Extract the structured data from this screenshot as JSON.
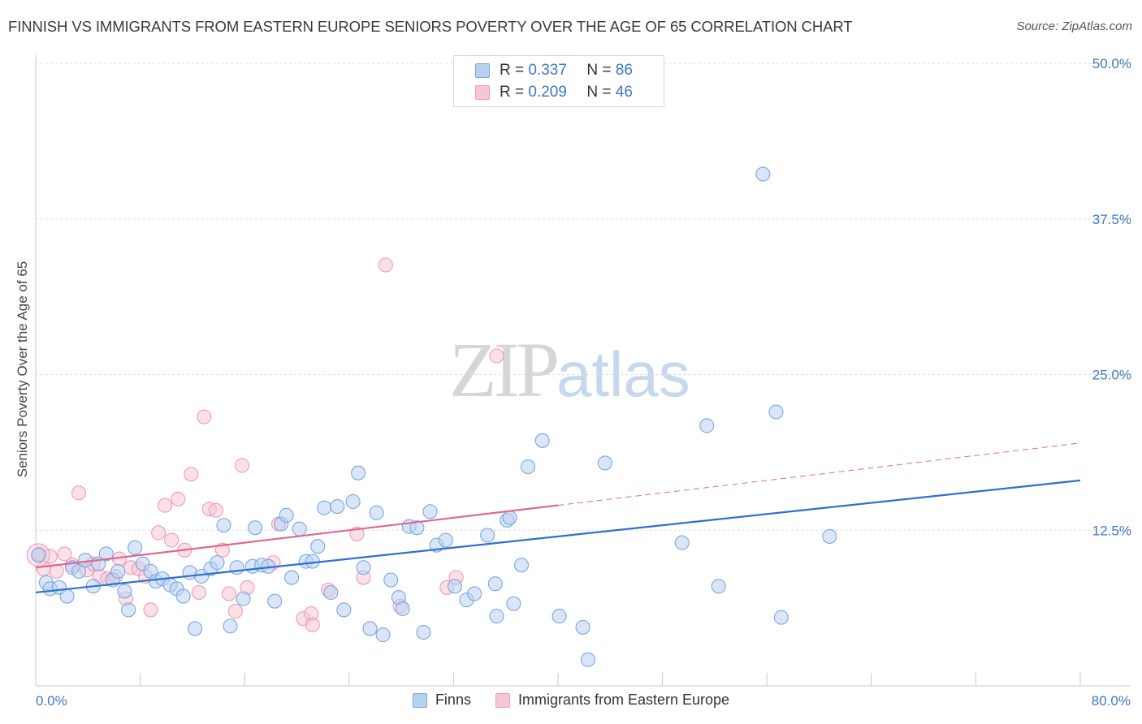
{
  "title": "FINNISH VS IMMIGRANTS FROM EASTERN EUROPE SENIORS POVERTY OVER THE AGE OF 65 CORRELATION CHART",
  "source": "Source: ZipAtlas.com",
  "watermark": {
    "zip": "ZIP",
    "atlas": "atlas"
  },
  "colors": {
    "finns": "#7aa7e0",
    "finns_fill": "#b9d1f1",
    "finns_line": "#2f6fcf",
    "immigrants": "#ef9ab6",
    "immigrants_fill": "#f7c6d5",
    "immigrants_line": "#e0678f",
    "tick": "#3f78c8",
    "grid": "#dddddd"
  },
  "legend": {
    "rows": [
      {
        "r_label": "R =",
        "r_value": "0.337",
        "n_label": "N =",
        "n_value": "86"
      },
      {
        "r_label": "R =",
        "r_value": "0.209",
        "n_label": "N =",
        "n_value": "46"
      }
    ]
  },
  "bottom_legend": {
    "finns": "Finns",
    "immigrants": "Immigrants from Eastern Europe"
  },
  "chart_data": {
    "type": "scatter",
    "title": "FINNISH VS IMMIGRANTS FROM EASTERN EUROPE SENIORS POVERTY OVER THE AGE OF 65 CORRELATION CHART",
    "xlabel": "",
    "ylabel": "Seniors Poverty Over the Age of 65",
    "xlim": [
      0,
      80
    ],
    "ylim": [
      0,
      50
    ],
    "x_tick_labels": [
      "0.0%",
      "80.0%"
    ],
    "y_ticks": [
      12.5,
      25.0,
      37.5,
      50.0
    ],
    "y_tick_labels": [
      "12.5%",
      "25.0%",
      "37.5%",
      "50.0%"
    ],
    "grid": true,
    "legend_placement": "top-center",
    "series": [
      {
        "name": "Finns",
        "r": 0.337,
        "n": 86,
        "trend": {
          "x": [
            0,
            80
          ],
          "y": [
            7.5,
            16.5
          ],
          "dashed_from": null
        },
        "points": [
          [
            0.2,
            10.5
          ],
          [
            0.8,
            8.3
          ],
          [
            1.1,
            7.8
          ],
          [
            1.8,
            7.9
          ],
          [
            2.4,
            7.2
          ],
          [
            2.8,
            9.5
          ],
          [
            3.3,
            9.2
          ],
          [
            3.8,
            10.1
          ],
          [
            4.4,
            8.0
          ],
          [
            4.8,
            9.8
          ],
          [
            5.4,
            10.6
          ],
          [
            5.9,
            8.5
          ],
          [
            6.3,
            9.2
          ],
          [
            6.8,
            7.6
          ],
          [
            7.1,
            6.1
          ],
          [
            7.6,
            11.1
          ],
          [
            8.2,
            9.8
          ],
          [
            8.8,
            9.2
          ],
          [
            9.2,
            8.4
          ],
          [
            9.7,
            8.6
          ],
          [
            10.3,
            8.1
          ],
          [
            10.8,
            7.8
          ],
          [
            11.3,
            7.2
          ],
          [
            11.8,
            9.1
          ],
          [
            12.2,
            4.6
          ],
          [
            12.7,
            8.8
          ],
          [
            13.4,
            9.4
          ],
          [
            13.9,
            9.9
          ],
          [
            14.4,
            12.9
          ],
          [
            14.9,
            4.8
          ],
          [
            15.4,
            9.5
          ],
          [
            15.9,
            7.0
          ],
          [
            16.6,
            9.6
          ],
          [
            16.8,
            12.7
          ],
          [
            17.3,
            9.7
          ],
          [
            17.8,
            9.6
          ],
          [
            18.3,
            6.8
          ],
          [
            18.8,
            13.0
          ],
          [
            19.2,
            13.7
          ],
          [
            19.6,
            8.7
          ],
          [
            20.2,
            12.6
          ],
          [
            20.7,
            10.0
          ],
          [
            21.2,
            10.0
          ],
          [
            21.6,
            11.2
          ],
          [
            22.1,
            14.3
          ],
          [
            22.6,
            7.5
          ],
          [
            23.1,
            14.4
          ],
          [
            23.6,
            6.1
          ],
          [
            24.3,
            14.8
          ],
          [
            24.7,
            17.1
          ],
          [
            25.1,
            9.5
          ],
          [
            25.6,
            4.6
          ],
          [
            26.1,
            13.9
          ],
          [
            26.6,
            4.1
          ],
          [
            27.2,
            8.5
          ],
          [
            27.8,
            7.1
          ],
          [
            28.1,
            6.2
          ],
          [
            28.6,
            12.8
          ],
          [
            29.2,
            12.7
          ],
          [
            29.7,
            4.3
          ],
          [
            30.2,
            14.0
          ],
          [
            30.7,
            11.3
          ],
          [
            31.4,
            11.7
          ],
          [
            32.1,
            8.0
          ],
          [
            33.0,
            6.9
          ],
          [
            33.6,
            7.4
          ],
          [
            34.6,
            12.1
          ],
          [
            35.2,
            8.2
          ],
          [
            35.3,
            5.6
          ],
          [
            36.1,
            13.3
          ],
          [
            36.3,
            13.5
          ],
          [
            36.6,
            6.6
          ],
          [
            37.2,
            9.7
          ],
          [
            37.7,
            17.6
          ],
          [
            38.8,
            19.7
          ],
          [
            40.1,
            5.6
          ],
          [
            41.9,
            4.7
          ],
          [
            42.3,
            2.1
          ],
          [
            43.6,
            17.9
          ],
          [
            49.5,
            11.5
          ],
          [
            51.4,
            20.9
          ],
          [
            52.3,
            8.0
          ],
          [
            55.7,
            41.1
          ],
          [
            56.7,
            22.0
          ],
          [
            57.1,
            5.5
          ],
          [
            60.8,
            12.0
          ]
        ]
      },
      {
        "name": "Immigrants from Eastern Europe",
        "r": 0.209,
        "n": 46,
        "trend": {
          "x": [
            0,
            80
          ],
          "y": [
            9.5,
            19.5
          ],
          "dashed_from": 40
        },
        "points": [
          [
            0.3,
            10.6
          ],
          [
            0.6,
            9.4
          ],
          [
            1.1,
            10.4
          ],
          [
            1.6,
            9.2
          ],
          [
            2.2,
            10.6
          ],
          [
            2.8,
            9.7
          ],
          [
            3.3,
            15.5
          ],
          [
            3.9,
            9.3
          ],
          [
            4.4,
            9.8
          ],
          [
            4.9,
            8.8
          ],
          [
            5.5,
            8.6
          ],
          [
            6.1,
            8.8
          ],
          [
            6.4,
            10.2
          ],
          [
            6.9,
            7.0
          ],
          [
            7.3,
            9.5
          ],
          [
            7.9,
            9.4
          ],
          [
            8.4,
            8.8
          ],
          [
            8.8,
            6.1
          ],
          [
            9.4,
            12.3
          ],
          [
            9.9,
            14.5
          ],
          [
            10.4,
            11.7
          ],
          [
            10.9,
            15.0
          ],
          [
            11.4,
            10.9
          ],
          [
            11.9,
            17.0
          ],
          [
            12.5,
            7.5
          ],
          [
            12.9,
            21.6
          ],
          [
            13.3,
            14.2
          ],
          [
            13.8,
            14.1
          ],
          [
            14.3,
            10.9
          ],
          [
            14.8,
            7.4
          ],
          [
            15.3,
            6.0
          ],
          [
            15.8,
            17.7
          ],
          [
            16.2,
            7.9
          ],
          [
            18.2,
            9.9
          ],
          [
            18.6,
            13.0
          ],
          [
            20.5,
            5.4
          ],
          [
            21.1,
            5.8
          ],
          [
            21.2,
            4.9
          ],
          [
            22.4,
            7.7
          ],
          [
            24.6,
            12.2
          ],
          [
            25.1,
            8.7
          ],
          [
            26.8,
            33.8
          ],
          [
            27.9,
            6.4
          ],
          [
            31.5,
            7.9
          ],
          [
            32.2,
            8.7
          ],
          [
            35.3,
            26.5
          ]
        ]
      }
    ]
  }
}
